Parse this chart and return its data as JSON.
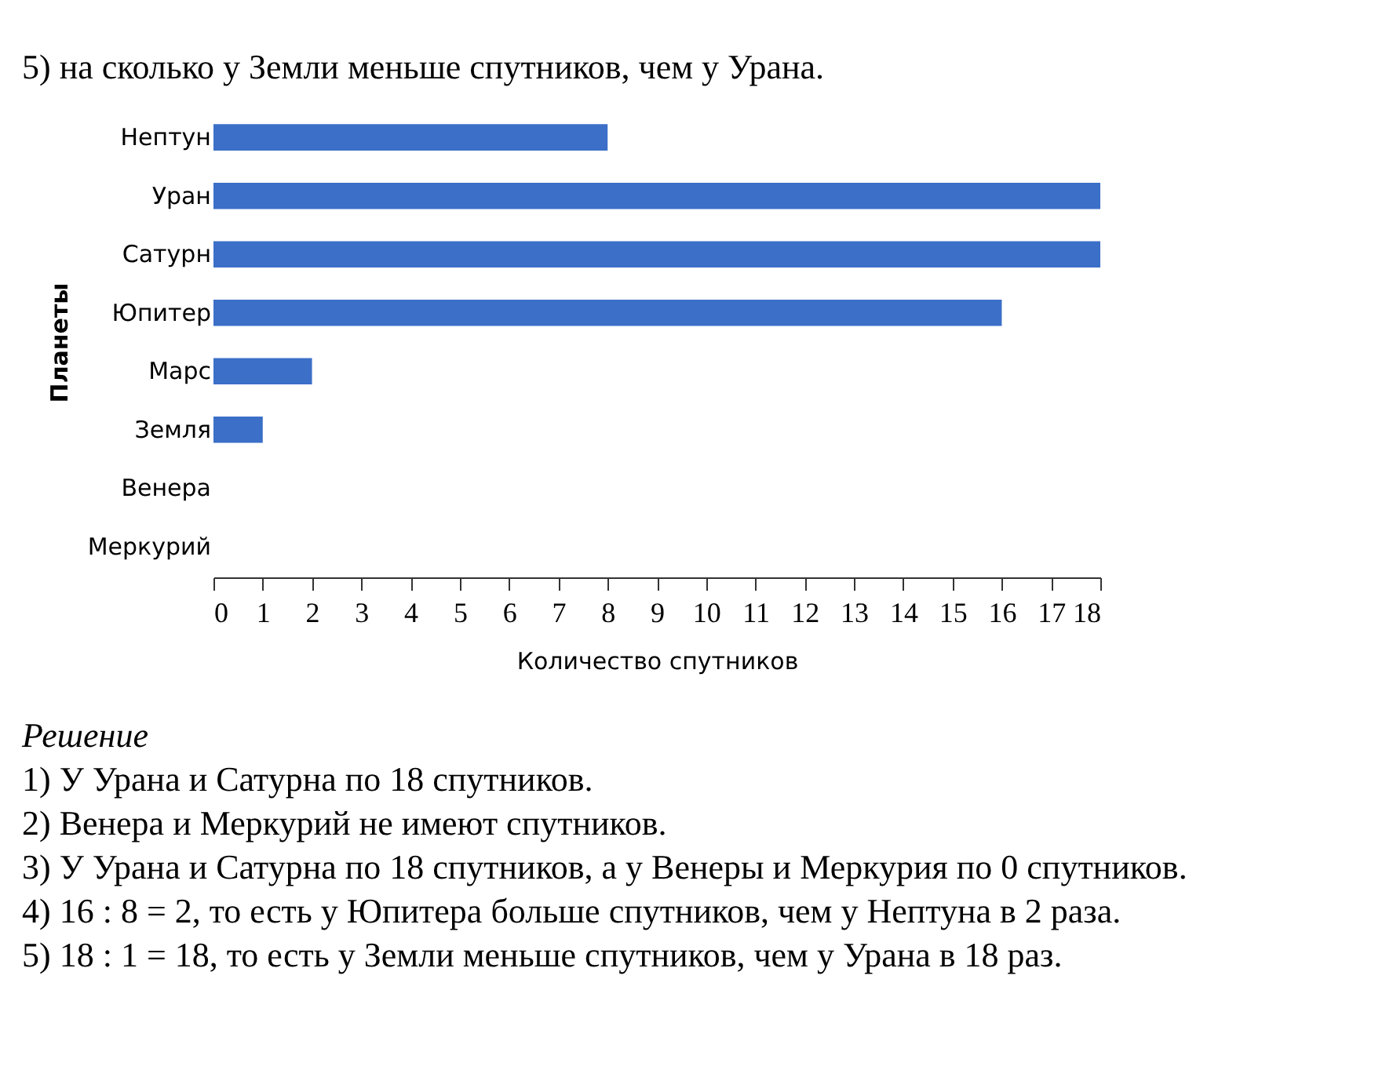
{
  "chart_data": {
    "type": "bar",
    "orientation": "horizontal",
    "title": "5) на сколько у Земли меньше спутников, чем у Урана.",
    "categories": [
      "Нептун",
      "Уран",
      "Сатурн",
      "Юпитер",
      "Марс",
      "Земля",
      "Венера",
      "Меркурий"
    ],
    "values": [
      8,
      18,
      18,
      16,
      2,
      1,
      0,
      0
    ],
    "color": "#3b6fc8",
    "xlim": [
      0,
      18
    ],
    "xticks": [
      0,
      1,
      2,
      3,
      4,
      5,
      6,
      7,
      8,
      9,
      10,
      11,
      12,
      13,
      14,
      15,
      16,
      17,
      18
    ],
    "xlabel": "Количество спутников",
    "ylabel": "Планеты",
    "grid": false,
    "annotations": [
      "Решение",
      "1) У Урана и Сатурна по 18 спутников.",
      "2) Венера и Меркурий не имеют спутников.",
      "3) У Урана и Сатурна по 18 спутников, а у Венеры и Меркурия по 0 спутников.",
      "4) 16 : 8 = 2, то есть у Юпитера больше спутников, чем у Нептуна в 2 раза.",
      "5) 18 : 1 = 18, то есть у Земли меньше спутников, чем у Урана в 18 раз."
    ]
  }
}
